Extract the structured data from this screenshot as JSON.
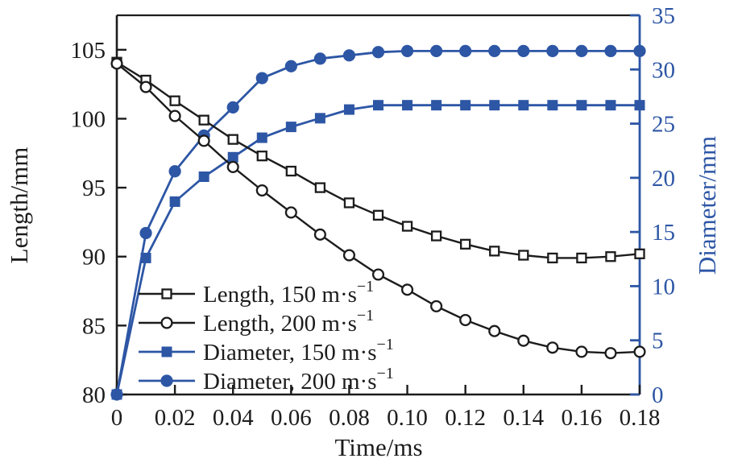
{
  "colors": {
    "accent_blue": "#2d56a5",
    "axis_black": "#1c1c1c",
    "background": "#ffffff"
  },
  "chart_data": {
    "type": "line",
    "title": "",
    "xlabel": "Time/ms",
    "ylabel_left": "Length/mm",
    "ylabel_right": "Diameter/mm",
    "grid": false,
    "legend_position": "lower-left-inside",
    "xlim": [
      0,
      0.18
    ],
    "xticks": [
      0,
      0.02,
      0.04,
      0.06,
      0.08,
      0.1,
      0.12,
      0.14,
      0.16,
      0.18
    ],
    "xtick_labels": [
      "0",
      "0.02",
      "0.04",
      "0.06",
      "0.08",
      "0.10",
      "0.12",
      "0.14",
      "0.16",
      "0.18"
    ],
    "ylim_left": [
      80,
      107.5
    ],
    "yticks_left": [
      80,
      85,
      90,
      95,
      100,
      105
    ],
    "ytick_labels_left": [
      "80",
      "85",
      "90",
      "95",
      "100",
      "105"
    ],
    "ylim_right": [
      0,
      35
    ],
    "yticks_right": [
      0,
      5,
      10,
      15,
      20,
      25,
      30,
      35
    ],
    "ytick_labels_right": [
      "0",
      "5",
      "10",
      "15",
      "20",
      "25",
      "30",
      "35"
    ],
    "x": [
      0,
      0.01,
      0.02,
      0.03,
      0.04,
      0.05,
      0.06,
      0.07,
      0.08,
      0.09,
      0.1,
      0.11,
      0.12,
      0.13,
      0.14,
      0.15,
      0.16,
      0.17,
      0.18
    ],
    "series": [
      {
        "id": "length-150",
        "label_base": "Length, 150 m·s",
        "label_sup": "−1",
        "axis": "left",
        "color": "#1c1c1c",
        "marker": "square-open",
        "values": [
          104.1,
          102.8,
          101.3,
          99.9,
          98.5,
          97.3,
          96.2,
          95.0,
          93.9,
          93.0,
          92.2,
          91.5,
          90.9,
          90.4,
          90.1,
          89.9,
          89.9,
          90.0,
          90.2
        ]
      },
      {
        "id": "length-200",
        "label_base": "Length, 200 m·s",
        "label_sup": "−1",
        "axis": "left",
        "color": "#1c1c1c",
        "marker": "circle-open",
        "values": [
          104.0,
          102.3,
          100.2,
          98.4,
          96.5,
          94.8,
          93.2,
          91.6,
          90.1,
          88.7,
          87.6,
          86.4,
          85.4,
          84.6,
          83.9,
          83.4,
          83.1,
          83.0,
          83.1
        ]
      },
      {
        "id": "diameter-150",
        "label_base": "Diameter, 150 m·s",
        "label_sup": "−1",
        "axis": "right",
        "color": "#2d56a5",
        "marker": "square-filled",
        "values": [
          0,
          12.6,
          17.8,
          20.1,
          21.9,
          23.7,
          24.7,
          25.5,
          26.3,
          26.7,
          26.7,
          26.7,
          26.7,
          26.7,
          26.7,
          26.7,
          26.7,
          26.7,
          26.7
        ]
      },
      {
        "id": "diameter-200",
        "label_base": "Diameter, 200 m·s",
        "label_sup": "−1",
        "axis": "right",
        "color": "#2d56a5",
        "marker": "circle-filled",
        "values": [
          0,
          14.9,
          20.6,
          23.9,
          26.5,
          29.2,
          30.3,
          31.0,
          31.3,
          31.6,
          31.7,
          31.7,
          31.7,
          31.7,
          31.7,
          31.7,
          31.7,
          31.7,
          31.7
        ]
      }
    ]
  }
}
